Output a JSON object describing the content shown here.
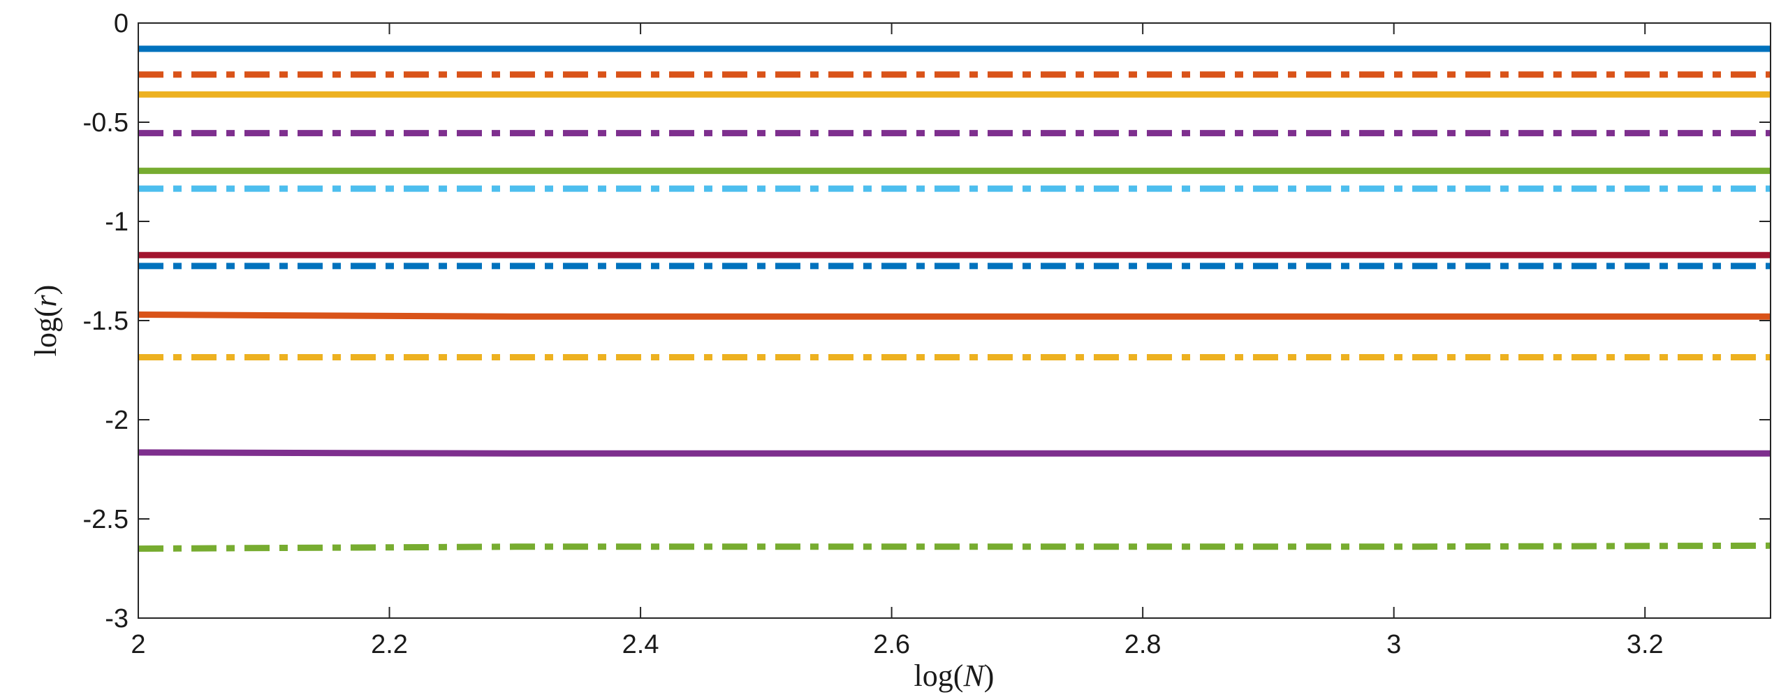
{
  "chart_data": {
    "type": "line",
    "title": "",
    "xlabel_parts": {
      "pre": "log(",
      "var": "N",
      "post": ")"
    },
    "ylabel_parts": {
      "pre": "log(",
      "var": "r",
      "post": ")"
    },
    "xlim": [
      2,
      3.3
    ],
    "ylim": [
      -3,
      0
    ],
    "x_ticks": [
      2,
      2.2,
      2.4,
      2.6,
      2.8,
      3,
      3.2
    ],
    "x_tick_labels": [
      "2",
      "2.2",
      "2.4",
      "2.6",
      "2.8",
      "3",
      "3.2"
    ],
    "y_ticks": [
      0,
      -0.5,
      -1,
      -1.5,
      -2,
      -2.5,
      -3
    ],
    "y_tick_labels": [
      "0",
      "-0.5",
      "-1",
      "-1.5",
      "-2",
      "-2.5",
      "-3"
    ],
    "grid": false,
    "x": [
      2,
      2.3,
      2.6,
      3.0,
      3.3
    ],
    "series": [
      {
        "color": "#0072BD",
        "style": "solid",
        "values": [
          -0.13,
          -0.13,
          -0.13,
          -0.13,
          -0.13
        ]
      },
      {
        "color": "#D95319",
        "style": "dashdot",
        "values": [
          -0.26,
          -0.26,
          -0.26,
          -0.26,
          -0.26
        ]
      },
      {
        "color": "#EDB120",
        "style": "solid",
        "values": [
          -0.36,
          -0.36,
          -0.36,
          -0.36,
          -0.36
        ]
      },
      {
        "color": "#7E2F8E",
        "style": "dashdot",
        "values": [
          -0.555,
          -0.555,
          -0.555,
          -0.555,
          -0.555
        ]
      },
      {
        "color": "#77AC30",
        "style": "solid",
        "values": [
          -0.745,
          -0.745,
          -0.745,
          -0.745,
          -0.745
        ]
      },
      {
        "color": "#4DBEEE",
        "style": "dashdot",
        "values": [
          -0.835,
          -0.835,
          -0.835,
          -0.835,
          -0.835
        ]
      },
      {
        "color": "#A2142F",
        "style": "solid",
        "values": [
          -1.17,
          -1.17,
          -1.17,
          -1.17,
          -1.17
        ]
      },
      {
        "color": "#0072BD",
        "style": "dashdot",
        "values": [
          -1.225,
          -1.225,
          -1.225,
          -1.225,
          -1.225
        ]
      },
      {
        "color": "#D95319",
        "style": "solid",
        "values": [
          -1.47,
          -1.48,
          -1.48,
          -1.48,
          -1.48
        ]
      },
      {
        "color": "#EDB120",
        "style": "dashdot",
        "values": [
          -1.685,
          -1.685,
          -1.685,
          -1.685,
          -1.685
        ]
      },
      {
        "color": "#7E2F8E",
        "style": "solid",
        "values": [
          -2.165,
          -2.17,
          -2.17,
          -2.17,
          -2.17
        ]
      },
      {
        "color": "#77AC30",
        "style": "dashdot",
        "values": [
          -2.65,
          -2.64,
          -2.64,
          -2.64,
          -2.635
        ]
      }
    ]
  }
}
